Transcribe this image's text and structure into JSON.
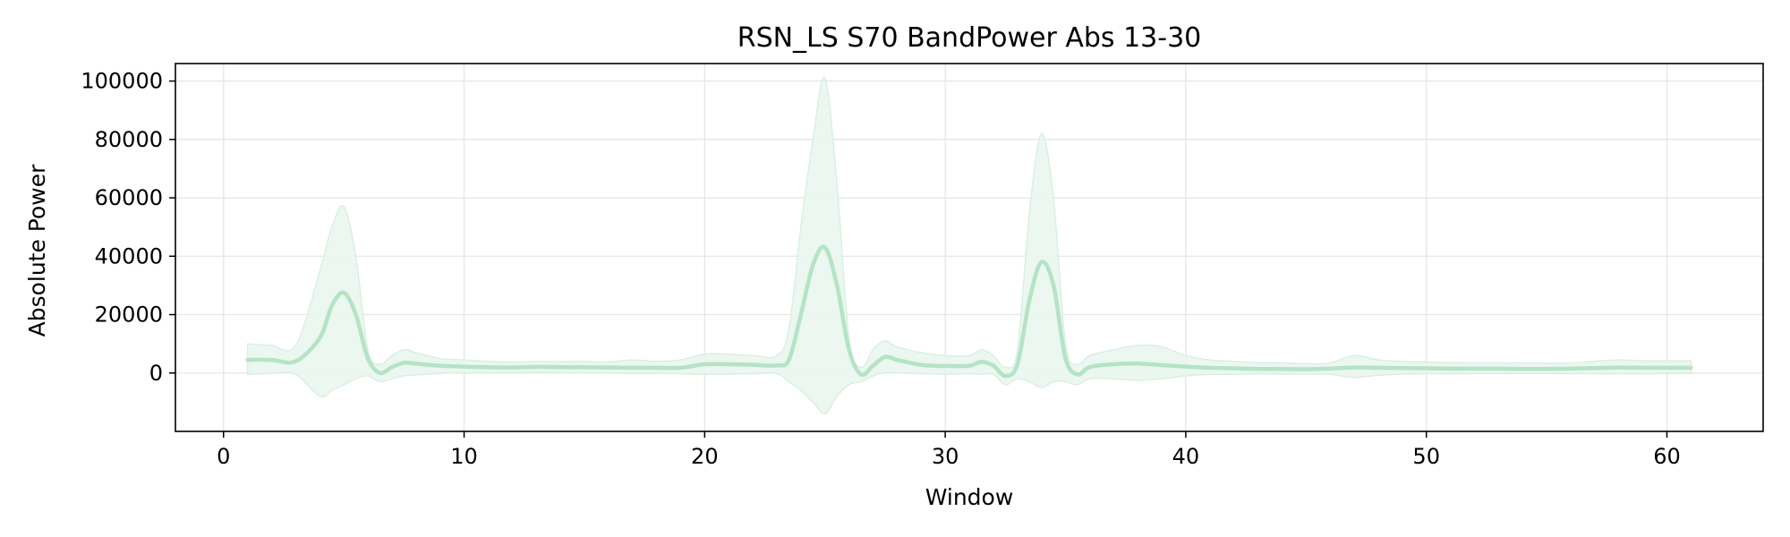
{
  "chart_data": {
    "type": "line",
    "title": "RSN_LS S70 BandPower Abs 13-30",
    "xlabel": "Window",
    "ylabel": "Absolute Power",
    "xlim": [
      -2,
      64
    ],
    "ylim": [
      -20000,
      106000
    ],
    "xticks": [
      0,
      10,
      20,
      30,
      40,
      50,
      60
    ],
    "yticks": [
      0,
      20000,
      40000,
      60000,
      80000,
      100000
    ],
    "grid": true,
    "colors": {
      "line": "#b5e3c6",
      "band": "#e9f6ee",
      "band_edge": "#d5eedf"
    },
    "series": [
      {
        "x": [
          1,
          2,
          3,
          4,
          4.5,
          5,
          5.5,
          6,
          6.5,
          7,
          7.5,
          8,
          9,
          10,
          11,
          12,
          13,
          14,
          15,
          16,
          17,
          18,
          19,
          20,
          21,
          22,
          23,
          23.5,
          24,
          24.5,
          25,
          25.5,
          26,
          26.5,
          27,
          27.5,
          28,
          29,
          30,
          31,
          31.5,
          32,
          32.5,
          33,
          33.5,
          34,
          34.5,
          35,
          35.5,
          36,
          37,
          38,
          39,
          40,
          41,
          42,
          43,
          44,
          45,
          46,
          47,
          48,
          49,
          50,
          51,
          52,
          53,
          54,
          55,
          56,
          57,
          58,
          59,
          60,
          61
        ],
        "mean": [
          4500,
          4500,
          4000,
          12000,
          23000,
          27500,
          20000,
          5000,
          0,
          2000,
          3500,
          3200,
          2500,
          2200,
          2000,
          1900,
          2100,
          2000,
          2000,
          1900,
          1800,
          1800,
          1800,
          3000,
          3000,
          2800,
          2600,
          4500,
          20000,
          37000,
          43000,
          30000,
          8000,
          -500,
          2500,
          5500,
          4500,
          2800,
          2400,
          2500,
          3800,
          2500,
          -1000,
          3000,
          25000,
          38000,
          30000,
          5000,
          -500,
          2000,
          3000,
          3200,
          2700,
          2200,
          1800,
          1600,
          1400,
          1400,
          1300,
          1500,
          1900,
          1800,
          1700,
          1600,
          1500,
          1500,
          1500,
          1400,
          1400,
          1500,
          1700,
          1900,
          1800,
          1800,
          1800
        ],
        "upper": [
          10000,
          9500,
          9500,
          35000,
          50000,
          57000,
          40000,
          8000,
          3000,
          6000,
          8000,
          7000,
          5000,
          4500,
          4000,
          3800,
          4000,
          3900,
          4000,
          3800,
          4500,
          4000,
          4500,
          6500,
          6500,
          6000,
          6000,
          15000,
          50000,
          80000,
          101000,
          65000,
          12000,
          2000,
          8000,
          11000,
          9000,
          7000,
          6000,
          6000,
          8000,
          6000,
          2000,
          8000,
          55000,
          82000,
          60000,
          10000,
          3000,
          6000,
          8000,
          9500,
          9000,
          6000,
          4500,
          4000,
          3500,
          3500,
          3200,
          3500,
          6000,
          4500,
          4000,
          3800,
          3600,
          3500,
          3500,
          3400,
          3400,
          3500,
          4000,
          4500,
          4200,
          4200,
          4200
        ],
        "lower": [
          -500,
          -200,
          -500,
          -8000,
          -6000,
          -4000,
          -2000,
          -1000,
          -3000,
          -2000,
          -1000,
          -700,
          -200,
          0,
          0,
          100,
          200,
          100,
          0,
          0,
          -200,
          -100,
          -300,
          -500,
          -400,
          -300,
          -200,
          -3000,
          -6000,
          -10000,
          -14000,
          -8000,
          -4000,
          -3000,
          -1000,
          0,
          0,
          -300,
          -400,
          -300,
          -400,
          -500,
          -4000,
          -2000,
          -3000,
          -5000,
          -3000,
          -3000,
          -4000,
          -2000,
          -2000,
          -2500,
          -2000,
          -1000,
          -500,
          -500,
          -300,
          -400,
          -400,
          -500,
          -1500,
          -800,
          -400,
          -300,
          -300,
          -200,
          -200,
          -200,
          -200,
          -200,
          -300,
          -300,
          -300,
          -200,
          -200
        ]
      }
    ]
  }
}
